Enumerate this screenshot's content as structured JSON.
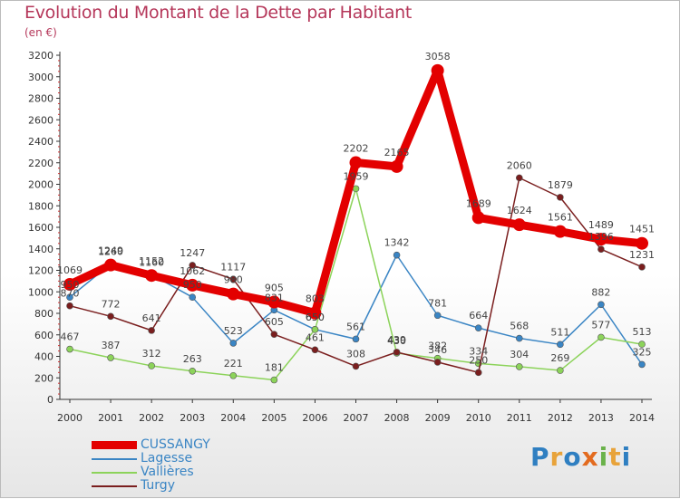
{
  "title": "Evolution du Montant de la Dette par Habitant",
  "subtitle": "(en €)",
  "logo": {
    "text": "Proxiti",
    "colors": [
      "#2f7fc1",
      "#e8a33a",
      "#2f7fc1",
      "#e36b1f",
      "#6ab24a",
      "#e8a33a",
      "#2f7fc1"
    ]
  },
  "chart_data": {
    "type": "line",
    "title": "Evolution du Montant de la Dette par Habitant",
    "subtitle": "(en €)",
    "x": [
      "2000",
      "2001",
      "2002",
      "2003",
      "2004",
      "2005",
      "2006",
      "2007",
      "2008",
      "2009",
      "2010",
      "2011",
      "2012",
      "2013",
      "2014"
    ],
    "ylim": [
      0,
      3200
    ],
    "yticks": [
      0,
      200,
      400,
      600,
      800,
      1000,
      1200,
      1400,
      1600,
      1800,
      2000,
      2200,
      2400,
      2600,
      2800,
      3000,
      3200
    ],
    "grid": false,
    "legend_position": "bottom-left",
    "series": [
      {
        "name": "CUSSANGY",
        "color": "#e30000",
        "values": [
          1069,
          1249,
          1152,
          1062,
          980,
          905,
          803,
          2202,
          2165,
          3058,
          1689,
          1624,
          1561,
          1489,
          1451
        ]
      },
      {
        "name": "Lagesse",
        "color": "#3a85c4",
        "values": [
          950,
          1260,
          1160,
          950,
          523,
          831,
          650,
          561,
          1342,
          781,
          664,
          568,
          511,
          882,
          325
        ]
      },
      {
        "name": "Vallières",
        "color": "#8cd35a",
        "values": [
          467,
          387,
          312,
          263,
          221,
          181,
          650,
          1959,
          430,
          382,
          334,
          304,
          269,
          577,
          513
        ]
      },
      {
        "name": "Turgy",
        "color": "#7a1e1e",
        "values": [
          870,
          772,
          641,
          1247,
          1117,
          605,
          461,
          308,
          439,
          346,
          250,
          2060,
          1879,
          1396,
          1231
        ]
      }
    ],
    "point_labels": [
      [
        "1069",
        "1249",
        "1152",
        "1062",
        "980",
        "905",
        "803",
        "2202",
        "2165",
        "3058",
        "1689",
        "1624",
        "1561",
        "1489",
        "1451"
      ],
      [
        "950",
        "1260",
        "1160",
        "950",
        "523",
        "831",
        "650",
        "561",
        "1342",
        "781",
        "664",
        "568",
        "511",
        "882",
        "325"
      ],
      [
        "467",
        "387",
        "312",
        "263",
        "221",
        "181",
        "650",
        "1959",
        "430",
        "382",
        "334",
        "304",
        "269",
        "577",
        "513"
      ],
      [
        "870",
        "772",
        "641",
        "1247",
        "1117",
        "605",
        "461",
        "308",
        "439",
        "346",
        "250",
        "2060",
        "1879",
        "1396",
        "1231"
      ]
    ]
  }
}
